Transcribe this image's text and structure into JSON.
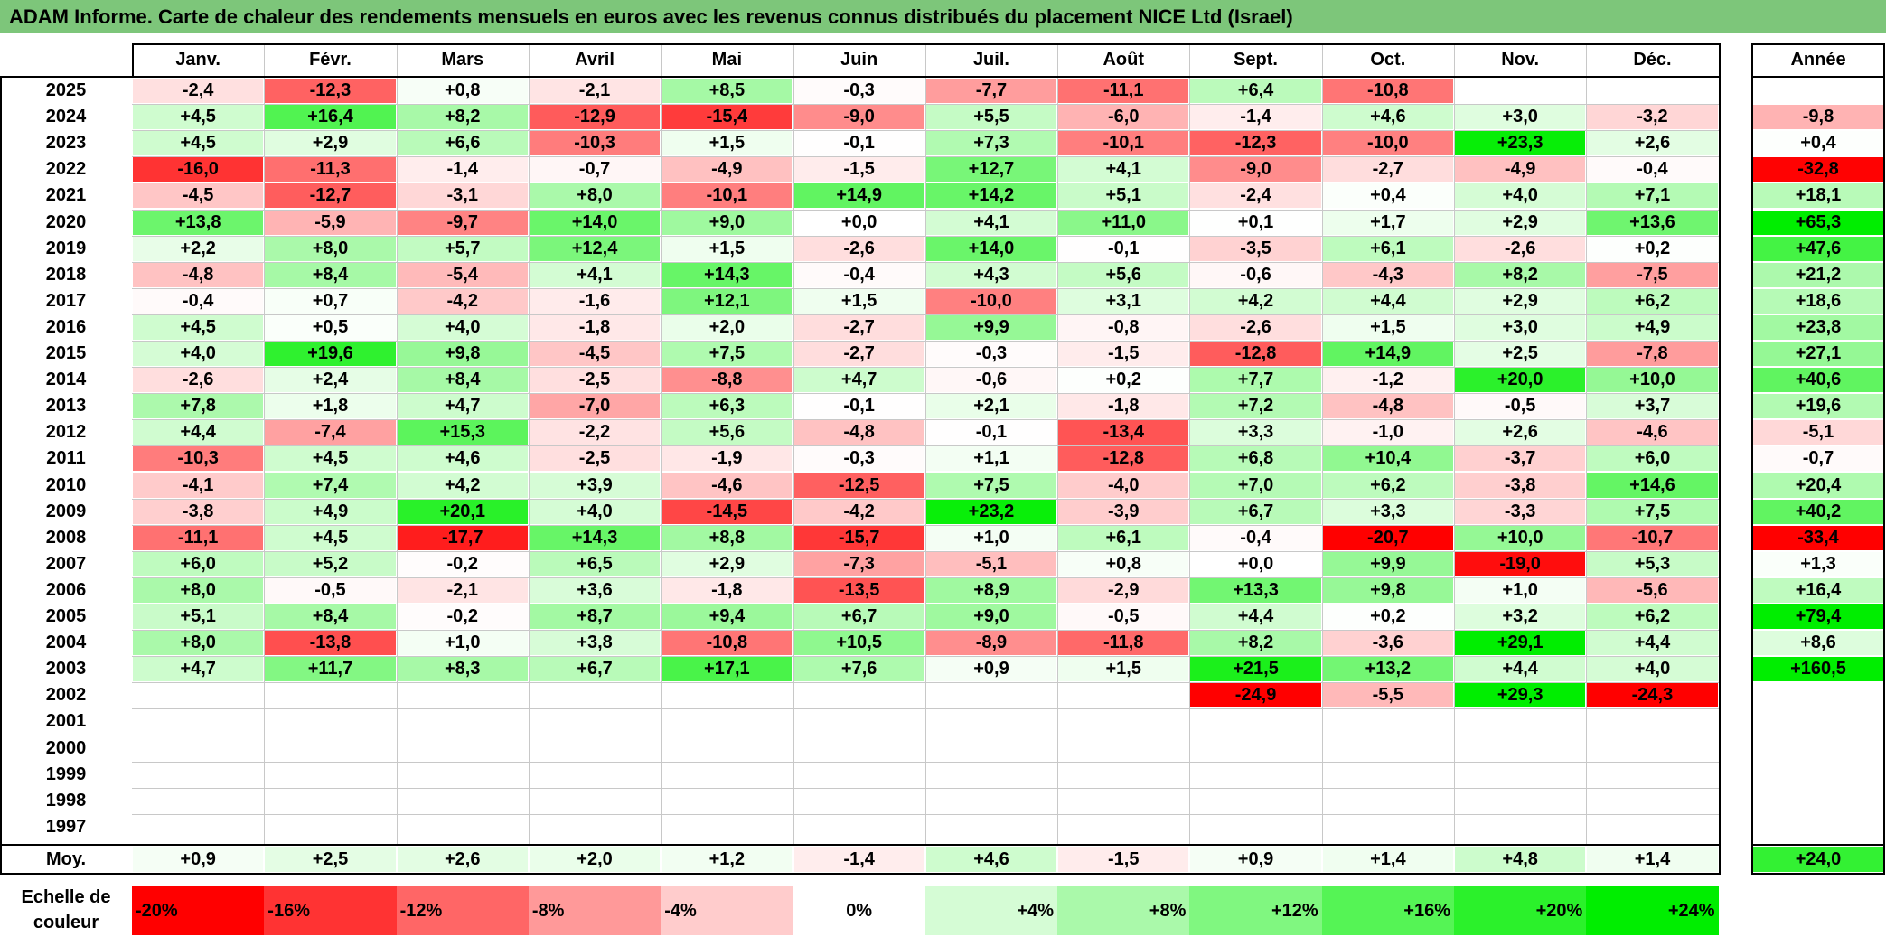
{
  "title": "ADAM Informe. Carte de chaleur des rendements mensuels en euros avec les revenus connus distribués du placement NICE Ltd (Israel)",
  "chart_data": {
    "type": "heatmap",
    "months": [
      "Janv.",
      "Févr.",
      "Mars",
      "Avril",
      "Mai",
      "Juin",
      "Juil.",
      "Août",
      "Sept.",
      "Oct.",
      "Nov.",
      "Déc."
    ],
    "year_header": "Année",
    "rows": [
      {
        "year": "2025",
        "months": [
          "-2,4",
          "-12,3",
          "+0,8",
          "-2,1",
          "+8,5",
          "-0,3",
          "-7,7",
          "-11,1",
          "+6,4",
          "-10,8",
          "",
          ""
        ],
        "annual": ""
      },
      {
        "year": "2024",
        "months": [
          "+4,5",
          "+16,4",
          "+8,2",
          "-12,9",
          "-15,4",
          "-9,0",
          "+5,5",
          "-6,0",
          "-1,4",
          "+4,6",
          "+3,0",
          "-3,2"
        ],
        "annual": "-9,8"
      },
      {
        "year": "2023",
        "months": [
          "+4,5",
          "+2,9",
          "+6,6",
          "-10,3",
          "+1,5",
          "-0,1",
          "+7,3",
          "-10,1",
          "-12,3",
          "-10,0",
          "+23,3",
          "+2,6"
        ],
        "annual": "+0,4"
      },
      {
        "year": "2022",
        "months": [
          "-16,0",
          "-11,3",
          "-1,4",
          "-0,7",
          "-4,9",
          "-1,5",
          "+12,7",
          "+4,1",
          "-9,0",
          "-2,7",
          "-4,9",
          "-0,4"
        ],
        "annual": "-32,8"
      },
      {
        "year": "2021",
        "months": [
          "-4,5",
          "-12,7",
          "-3,1",
          "+8,0",
          "-10,1",
          "+14,9",
          "+14,2",
          "+5,1",
          "-2,4",
          "+0,4",
          "+4,0",
          "+7,1"
        ],
        "annual": "+18,1"
      },
      {
        "year": "2020",
        "months": [
          "+13,8",
          "-5,9",
          "-9,7",
          "+14,0",
          "+9,0",
          "+0,0",
          "+4,1",
          "+11,0",
          "+0,1",
          "+1,7",
          "+2,9",
          "+13,6"
        ],
        "annual": "+65,3"
      },
      {
        "year": "2019",
        "months": [
          "+2,2",
          "+8,0",
          "+5,7",
          "+12,4",
          "+1,5",
          "-2,6",
          "+14,0",
          "-0,1",
          "-3,5",
          "+6,1",
          "-2,6",
          "+0,2"
        ],
        "annual": "+47,6"
      },
      {
        "year": "2018",
        "months": [
          "-4,8",
          "+8,4",
          "-5,4",
          "+4,1",
          "+14,3",
          "-0,4",
          "+4,3",
          "+5,6",
          "-0,6",
          "-4,3",
          "+8,2",
          "-7,5"
        ],
        "annual": "+21,2"
      },
      {
        "year": "2017",
        "months": [
          "-0,4",
          "+0,7",
          "-4,2",
          "-1,6",
          "+12,1",
          "+1,5",
          "-10,0",
          "+3,1",
          "+4,2",
          "+4,4",
          "+2,9",
          "+6,2"
        ],
        "annual": "+18,6"
      },
      {
        "year": "2016",
        "months": [
          "+4,5",
          "+0,5",
          "+4,0",
          "-1,8",
          "+2,0",
          "-2,7",
          "+9,9",
          "-0,8",
          "-2,6",
          "+1,5",
          "+3,0",
          "+4,9"
        ],
        "annual": "+23,8"
      },
      {
        "year": "2015",
        "months": [
          "+4,0",
          "+19,6",
          "+9,8",
          "-4,5",
          "+7,5",
          "-2,7",
          "-0,3",
          "-1,5",
          "-12,8",
          "+14,9",
          "+2,5",
          "-7,8"
        ],
        "annual": "+27,1"
      },
      {
        "year": "2014",
        "months": [
          "-2,6",
          "+2,4",
          "+8,4",
          "-2,5",
          "-8,8",
          "+4,7",
          "-0,6",
          "+0,2",
          "+7,7",
          "-1,2",
          "+20,0",
          "+10,0"
        ],
        "annual": "+40,6"
      },
      {
        "year": "2013",
        "months": [
          "+7,8",
          "+1,8",
          "+4,7",
          "-7,0",
          "+6,3",
          "-0,1",
          "+2,1",
          "-1,8",
          "+7,2",
          "-4,8",
          "-0,5",
          "+3,7"
        ],
        "annual": "+19,6"
      },
      {
        "year": "2012",
        "months": [
          "+4,4",
          "-7,4",
          "+15,3",
          "-2,2",
          "+5,6",
          "-4,8",
          "-0,1",
          "-13,4",
          "+3,3",
          "-1,0",
          "+2,6",
          "-4,6"
        ],
        "annual": "-5,1"
      },
      {
        "year": "2011",
        "months": [
          "-10,3",
          "+4,5",
          "+4,6",
          "-2,5",
          "-1,9",
          "-0,3",
          "+1,1",
          "-12,8",
          "+6,8",
          "+10,4",
          "-3,7",
          "+6,0"
        ],
        "annual": "-0,7"
      },
      {
        "year": "2010",
        "months": [
          "-4,1",
          "+7,4",
          "+4,2",
          "+3,9",
          "-4,6",
          "-12,5",
          "+7,5",
          "-4,0",
          "+7,0",
          "+6,2",
          "-3,8",
          "+14,6"
        ],
        "annual": "+20,4"
      },
      {
        "year": "2009",
        "months": [
          "-3,8",
          "+4,9",
          "+20,1",
          "+4,0",
          "-14,5",
          "-4,2",
          "+23,2",
          "-3,9",
          "+6,7",
          "+3,3",
          "-3,3",
          "+7,5"
        ],
        "annual": "+40,2"
      },
      {
        "year": "2008",
        "months": [
          "-11,1",
          "+4,5",
          "-17,7",
          "+14,3",
          "+8,8",
          "-15,7",
          "+1,0",
          "+6,1",
          "-0,4",
          "-20,7",
          "+10,0",
          "-10,7"
        ],
        "annual": "-33,4"
      },
      {
        "year": "2007",
        "months": [
          "+6,0",
          "+5,2",
          "-0,2",
          "+6,5",
          "+2,9",
          "-7,3",
          "-5,1",
          "+0,8",
          "+0,0",
          "+9,9",
          "-19,0",
          "+5,3"
        ],
        "annual": "+1,3"
      },
      {
        "year": "2006",
        "months": [
          "+8,0",
          "-0,5",
          "-2,1",
          "+3,6",
          "-1,8",
          "-13,5",
          "+8,9",
          "-2,9",
          "+13,3",
          "+9,8",
          "+1,0",
          "-5,6"
        ],
        "annual": "+16,4"
      },
      {
        "year": "2005",
        "months": [
          "+5,1",
          "+8,4",
          "-0,2",
          "+8,7",
          "+9,4",
          "+6,7",
          "+9,0",
          "-0,5",
          "+4,4",
          "+0,2",
          "+3,2",
          "+6,2"
        ],
        "annual": "+79,4"
      },
      {
        "year": "2004",
        "months": [
          "+8,0",
          "-13,8",
          "+1,0",
          "+3,8",
          "-10,8",
          "+10,5",
          "-8,9",
          "-11,8",
          "+8,2",
          "-3,6",
          "+29,1",
          "+4,4"
        ],
        "annual": "+8,6"
      },
      {
        "year": "2003",
        "months": [
          "+4,7",
          "+11,7",
          "+8,3",
          "+6,7",
          "+17,1",
          "+7,6",
          "+0,9",
          "+1,5",
          "+21,5",
          "+13,2",
          "+4,4",
          "+4,0"
        ],
        "annual": "+160,5"
      },
      {
        "year": "2002",
        "months": [
          "",
          "",
          "",
          "",
          "",
          "",
          "",
          "",
          "-24,9",
          "-5,5",
          "+29,3",
          "-24,3"
        ],
        "annual": ""
      },
      {
        "year": "2001",
        "months": [
          "",
          "",
          "",
          "",
          "",
          "",
          "",
          "",
          "",
          "",
          "",
          ""
        ],
        "annual": ""
      },
      {
        "year": "2000",
        "months": [
          "",
          "",
          "",
          "",
          "",
          "",
          "",
          "",
          "",
          "",
          "",
          ""
        ],
        "annual": ""
      },
      {
        "year": "1999",
        "months": [
          "",
          "",
          "",
          "",
          "",
          "",
          "",
          "",
          "",
          "",
          "",
          ""
        ],
        "annual": ""
      },
      {
        "year": "1998",
        "months": [
          "",
          "",
          "",
          "",
          "",
          "",
          "",
          "",
          "",
          "",
          "",
          ""
        ],
        "annual": ""
      },
      {
        "year": "1997",
        "months": [
          "",
          "",
          "",
          "",
          "",
          "",
          "",
          "",
          "",
          "",
          "",
          ""
        ],
        "annual": ""
      }
    ],
    "average": {
      "label": "Moy.",
      "months": [
        "+0,9",
        "+2,5",
        "+2,6",
        "+2,0",
        "+1,2",
        "-1,4",
        "+4,6",
        "-1,5",
        "+0,9",
        "+1,4",
        "+4,8",
        "+1,4"
      ],
      "annual": "+24,0"
    },
    "legend": {
      "label_line1": "Echelle de",
      "label_line2": "couleur",
      "steps": [
        "-20%",
        "-16%",
        "-12%",
        "-8%",
        "-4%",
        "0%",
        "+4%",
        "+8%",
        "+12%",
        "+16%",
        "+20%",
        "+24%"
      ],
      "values": [
        -20,
        -16,
        -12,
        -8,
        -4,
        0,
        4,
        8,
        12,
        16,
        20,
        24
      ]
    },
    "colors": {
      "negative_max": "#ff0000",
      "neutral": "#ffffff",
      "positive_max": "#00ee00",
      "title_bar": "#7dc67a"
    }
  }
}
